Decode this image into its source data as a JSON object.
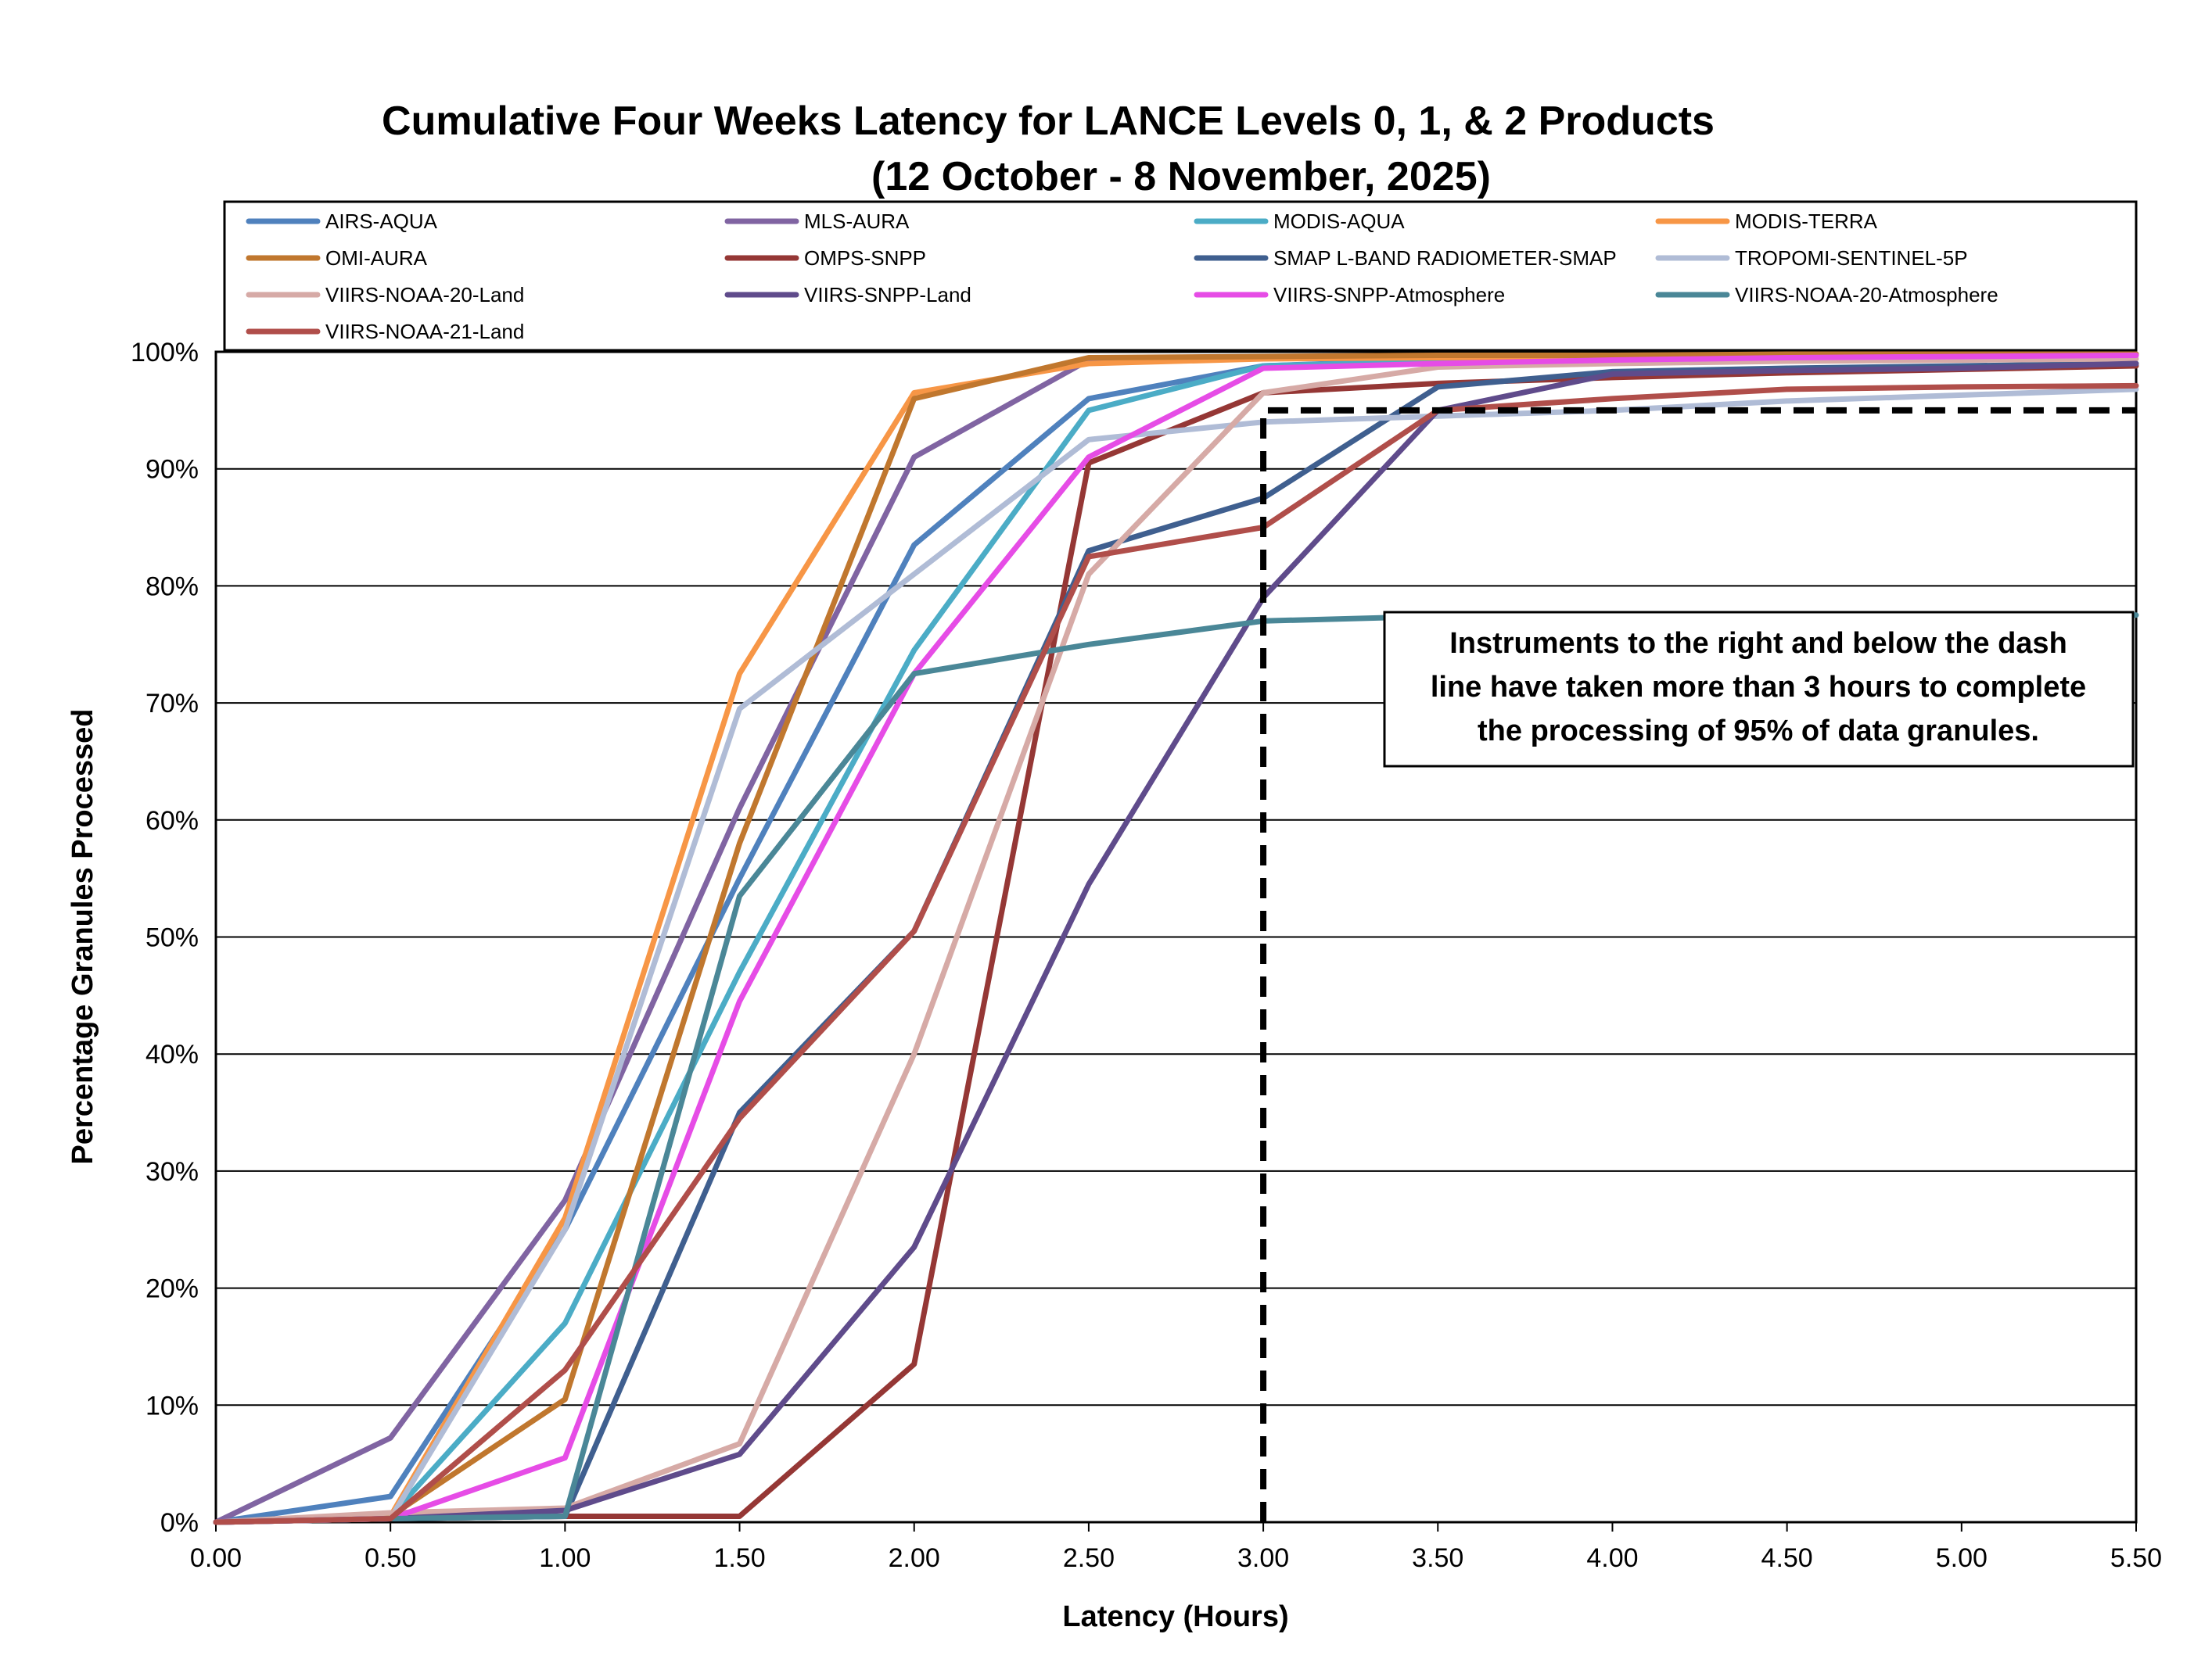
{
  "chart_data": {
    "type": "line",
    "title": "Cumulative Four Weeks Latency  for LANCE Levels 0, 1, & 2 Products",
    "subtitle": "(12  October   -  8  November,  2025)",
    "xlabel": "Latency (Hours)",
    "ylabel": "Percentage Granules Processed",
    "xlim": [
      0,
      5.5
    ],
    "ylim": [
      0,
      100
    ],
    "x_ticks": [
      "0.00",
      "0.50",
      "1.00",
      "1.50",
      "2.00",
      "2.50",
      "3.00",
      "3.50",
      "4.00",
      "4.50",
      "5.00",
      "5.50"
    ],
    "y_ticks": [
      "0%",
      "10%",
      "20%",
      "30%",
      "40%",
      "50%",
      "60%",
      "70%",
      "80%",
      "90%",
      "100%"
    ],
    "grid": "horizontal",
    "legend_position": "top",
    "x": [
      0,
      0.5,
      1.0,
      1.5,
      2.0,
      2.5,
      3.0,
      3.5,
      4.0,
      4.5,
      5.0,
      5.5
    ],
    "series": [
      {
        "name": "AIRS-AQUA",
        "color": "#4f81bd",
        "values": [
          0,
          2.2,
          25,
          55,
          83.5,
          96,
          98.8,
          99.3,
          99.5,
          99.6,
          99.7,
          99.8
        ]
      },
      {
        "name": "MLS-AURA",
        "color": "#8064a2",
        "values": [
          0,
          7.2,
          27.5,
          61,
          91,
          99.3,
          99.5,
          99.6,
          99.7,
          99.7,
          99.8,
          99.8
        ]
      },
      {
        "name": "MODIS-AQUA",
        "color": "#4bacc6",
        "values": [
          0,
          0.5,
          17,
          47,
          74.5,
          95,
          98.8,
          99.2,
          99.4,
          99.5,
          99.6,
          99.7
        ]
      },
      {
        "name": "MODIS-TERRA",
        "color": "#f79646",
        "values": [
          0,
          0.5,
          26,
          72.5,
          96.5,
          99,
          99.4,
          99.5,
          99.6,
          99.7,
          99.7,
          99.8
        ]
      },
      {
        "name": "OMI-AURA",
        "color": "#c0772e",
        "values": [
          0,
          0.5,
          10.5,
          58,
          96,
          99.5,
          99.6,
          99.7,
          99.7,
          99.8,
          99.8,
          99.8
        ]
      },
      {
        "name": "OMPS-SNPP",
        "color": "#953735",
        "values": [
          0,
          0.3,
          0.5,
          0.5,
          13.5,
          90.5,
          96.5,
          97.3,
          97.8,
          98.2,
          98.5,
          98.8
        ]
      },
      {
        "name": "SMAP L-BAND RADIOMETER-SMAP",
        "color": "#3f5f8f",
        "values": [
          0,
          0.3,
          0.5,
          35,
          50.5,
          83,
          87.5,
          97,
          98.3,
          98.6,
          98.8,
          99
        ]
      },
      {
        "name": "TROPOMI-SENTINEL-5P",
        "color": "#b0bcd6",
        "values": [
          0,
          0.3,
          25,
          69.5,
          81,
          92.5,
          94,
          94.5,
          95,
          95.8,
          96.3,
          96.8
        ]
      },
      {
        "name": "VIIRS-NOAA-20-Land",
        "color": "#d6aaa6",
        "values": [
          0,
          0.8,
          1.2,
          6.7,
          40,
          81,
          96.5,
          98.7,
          99,
          99.2,
          99.3,
          99.4
        ]
      },
      {
        "name": "VIIRS-SNPP-Land",
        "color": "#5f4b8b",
        "values": [
          0,
          0.3,
          1.0,
          5.8,
          23.5,
          54.5,
          79,
          95,
          98.1,
          98.4,
          98.6,
          99
        ]
      },
      {
        "name": "VIIRS-SNPP-Atmosphere",
        "color": "#e64ce6",
        "values": [
          0,
          0.3,
          5.5,
          44.5,
          72.5,
          91,
          98.6,
          99,
          99.3,
          99.5,
          99.6,
          99.7
        ]
      },
      {
        "name": "VIIRS-NOAA-20-Atmosphere",
        "color": "#4a8797",
        "values": [
          0,
          0.3,
          0.5,
          53.5,
          72.5,
          75,
          77,
          77.4,
          77.5,
          77.5,
          77.5,
          77.5
        ]
      },
      {
        "name": "VIIRS-NOAA-21-Land",
        "color": "#b04e4a",
        "values": [
          0,
          0.3,
          13,
          34.5,
          50.5,
          82.5,
          85,
          95,
          96,
          96.8,
          97,
          97.1
        ]
      }
    ],
    "threshold_line": {
      "x": 3.0,
      "y": 95,
      "style": "dashed"
    },
    "annotation": {
      "lines": [
        "Instruments to the right and below the dash",
        "line have taken more than 3 hours to complete",
        "the processing of 95% of data granules."
      ]
    }
  }
}
